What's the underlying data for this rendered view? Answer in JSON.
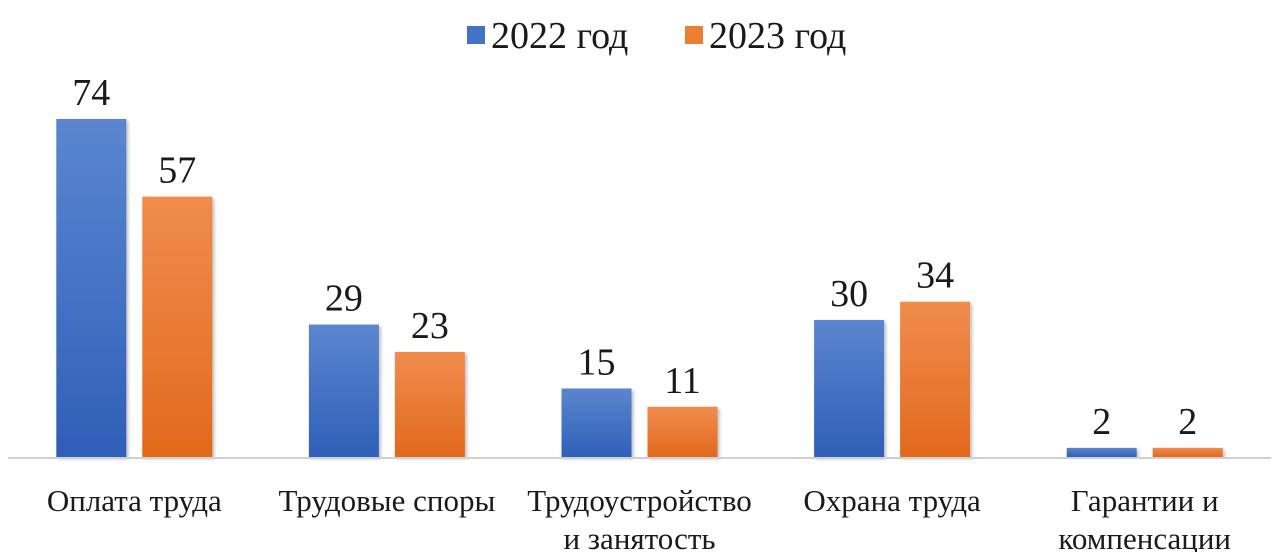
{
  "chart_data": {
    "type": "bar",
    "title": "",
    "xlabel": "",
    "ylabel": "",
    "categories": [
      [
        "Оплата труда"
      ],
      [
        "Трудовые споры"
      ],
      [
        "Трудоустройство",
        "и занятость"
      ],
      [
        "Охрана труда"
      ],
      [
        "Гарантии и",
        "компенсации"
      ]
    ],
    "series": [
      {
        "name": "2022 год",
        "values": [
          74,
          29,
          15,
          30,
          2
        ],
        "color": "#4472C4"
      },
      {
        "name": "2023 год",
        "values": [
          57,
          23,
          11,
          34,
          2
        ],
        "color": "#ED7D31"
      }
    ],
    "ylim": [
      0,
      74
    ],
    "grid": false,
    "legend": "top-center",
    "data_labels": true
  }
}
